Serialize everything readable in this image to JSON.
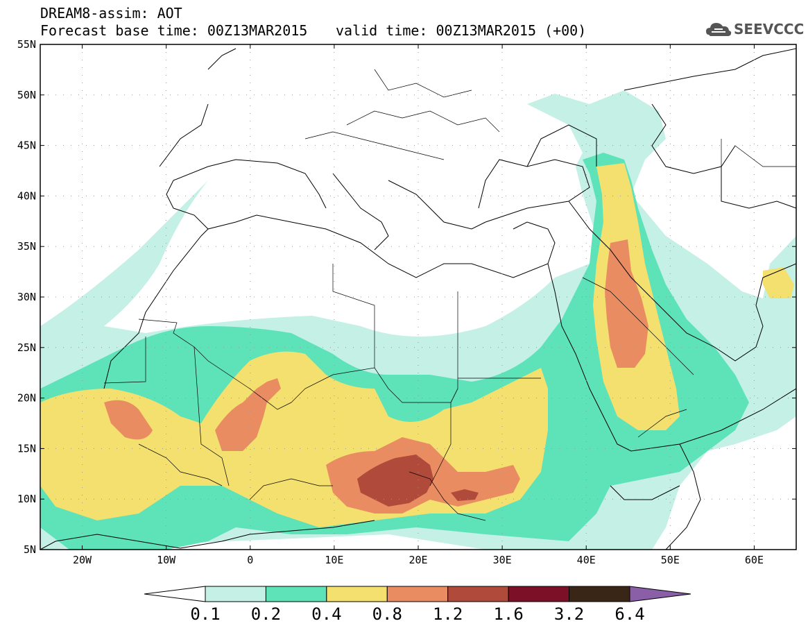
{
  "header": {
    "line1": "DREAM8-assim: AOT",
    "line2": "Forecast base time: 00Z13MAR2015",
    "valid": "valid time: 00Z13MAR2015 (+00)",
    "logo_text": "SEEVCCC"
  },
  "map": {
    "lat_labels": [
      "55N",
      "50N",
      "45N",
      "40N",
      "35N",
      "30N",
      "25N",
      "20N",
      "15N",
      "10N",
      "5N"
    ],
    "lon_labels": [
      "20W",
      "10W",
      "0",
      "10E",
      "20E",
      "30E",
      "40E",
      "50E",
      "60E"
    ],
    "lon_range": [
      -25,
      65
    ],
    "lat_range": [
      5,
      55
    ],
    "grid": "dotted"
  },
  "colorbar": {
    "labels": [
      "0.1",
      "0.2",
      "0.4",
      "0.8",
      "1.2",
      "1.6",
      "3.2",
      "6.4"
    ],
    "colors": [
      "#c4f0e6",
      "#5ee2b8",
      "#f4e06e",
      "#ea8c62",
      "#b04a3a",
      "#7b1026",
      "#3a2616",
      "#8a5fa8"
    ]
  }
}
